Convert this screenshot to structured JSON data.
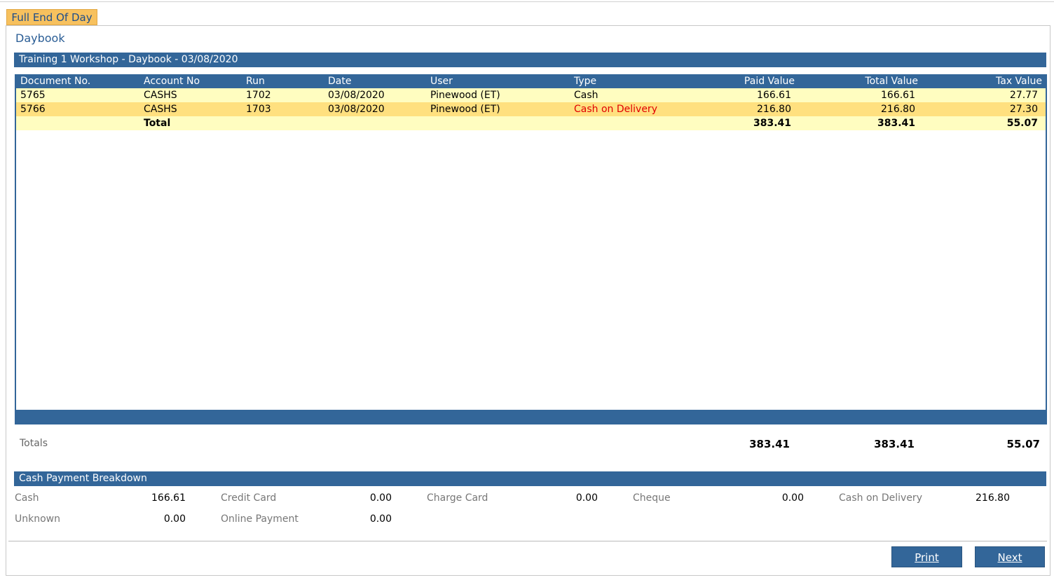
{
  "tab": {
    "label": "Full End Of Day"
  },
  "page": {
    "title": "Daybook"
  },
  "report": {
    "header": "Training 1 Workshop - Daybook - 03/08/2020"
  },
  "table": {
    "columns": [
      "Document No.",
      "Account No",
      "Run",
      "Date",
      "User",
      "Type",
      "Paid Value",
      "Total Value",
      "Tax Value"
    ],
    "rows": [
      {
        "doc": "5765",
        "account": "CASHS",
        "run": "1702",
        "date": "03/08/2020",
        "user": "Pinewood (ET)",
        "type": "Cash",
        "paid": "166.61",
        "total": "166.61",
        "tax": "27.77"
      },
      {
        "doc": "5766",
        "account": "CASHS",
        "run": "1703",
        "date": "03/08/2020",
        "user": "Pinewood (ET)",
        "type": "Cash on Delivery",
        "paid": "216.80",
        "total": "216.80",
        "tax": "27.30"
      }
    ],
    "total_row": {
      "label": "Total",
      "paid": "383.41",
      "total": "383.41",
      "tax": "55.07"
    }
  },
  "totals": {
    "label": "Totals",
    "paid": "383.41",
    "total": "383.41",
    "tax": "55.07"
  },
  "breakdown": {
    "header": "Cash Payment Breakdown",
    "items": [
      {
        "label": "Cash",
        "value": "166.61"
      },
      {
        "label": "Credit Card",
        "value": "0.00"
      },
      {
        "label": "Charge Card",
        "value": "0.00"
      },
      {
        "label": "Cheque",
        "value": "0.00"
      },
      {
        "label": "Cash on Delivery",
        "value": "216.80"
      },
      {
        "label": "Unknown",
        "value": "0.00"
      },
      {
        "label": "Online Payment",
        "value": "0.00"
      }
    ]
  },
  "buttons": {
    "print": "Print",
    "next": "Next"
  },
  "colors": {
    "header_blue": "#336699",
    "tab_orange": "#f7c15e",
    "row_light": "#fffdc0",
    "row_selected": "#ffe07f",
    "alert_red": "#e00000"
  }
}
